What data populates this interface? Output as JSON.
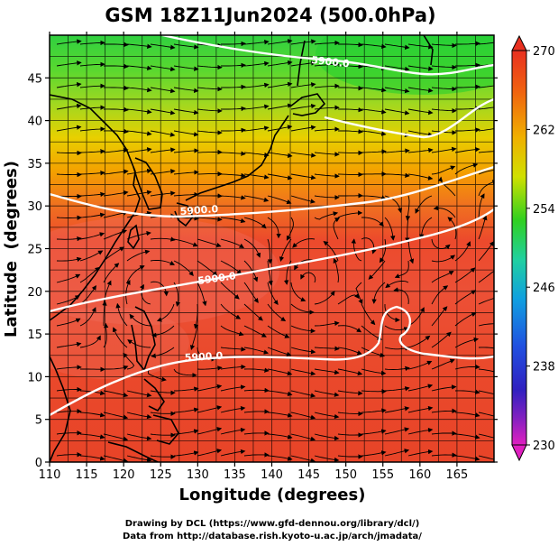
{
  "title": "GSM 18Z11Jun2024 (500.0hPa)",
  "axes": {
    "xlabel": "Longitude (degrees)",
    "ylabel": "Latitude  (degrees)",
    "xlim": [
      110,
      170
    ],
    "ylim": [
      0,
      50
    ],
    "xticks": [
      "110",
      "115",
      "120",
      "125",
      "130",
      "135",
      "140",
      "145",
      "150",
      "155",
      "160",
      "165"
    ],
    "yticks": [
      "0",
      "5",
      "10",
      "15",
      "20",
      "25",
      "30",
      "35",
      "40",
      "45"
    ],
    "grid": true
  },
  "colorbar": {
    "ticks": [
      "270",
      "262",
      "254",
      "246",
      "238",
      "230"
    ],
    "range": [
      230,
      270
    ],
    "colors": {
      "230": "#e020c0",
      "238": "#3020c0",
      "246": "#10a0e0",
      "254": "#30d020",
      "262": "#f0b000",
      "270": "#e83020"
    }
  },
  "contours": {
    "labels": [
      "5900.0",
      "5900.0",
      "5900.0",
      "5900.0"
    ],
    "unit": "m",
    "color": "#ffffff"
  },
  "footer": {
    "line1": "Drawing by DCL (https://www.gfd-dennou.org/library/dcl/)",
    "line2": "Data from http://database.rish.kyoto-u.ac.jp/arch/jmadata/"
  }
}
